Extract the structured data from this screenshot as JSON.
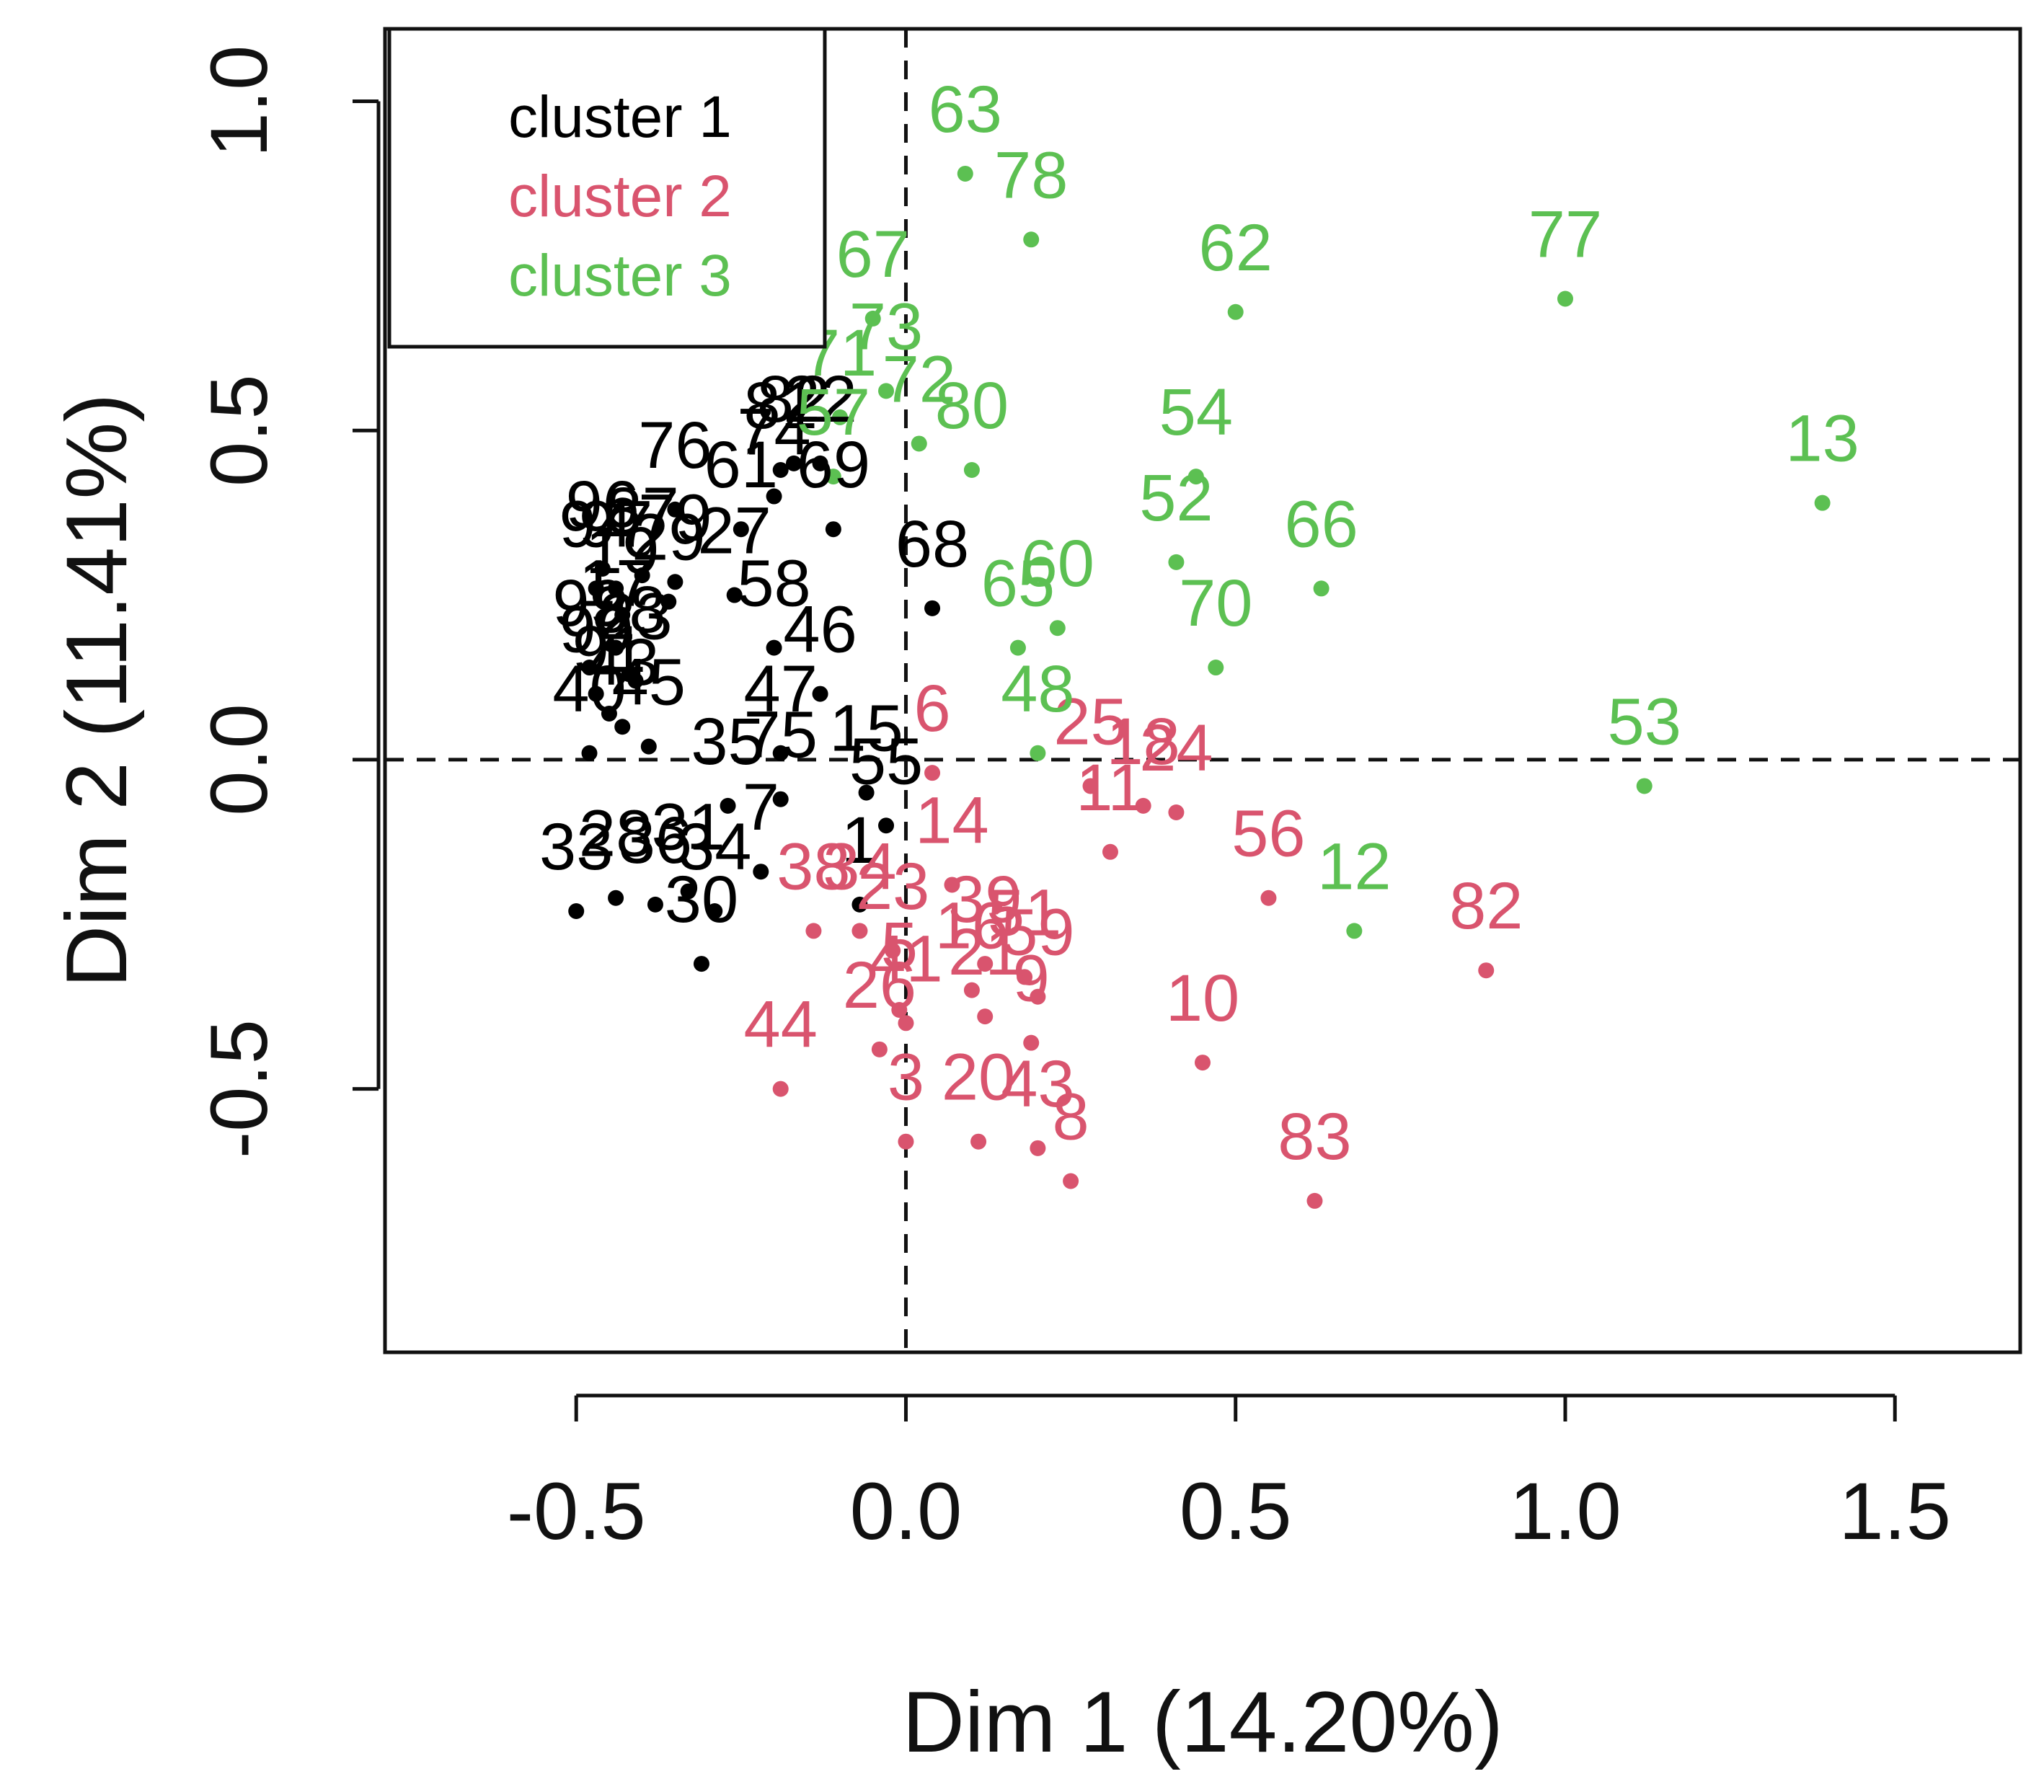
{
  "chart_data": {
    "type": "scatter",
    "title": "",
    "xlabel": "Dim 1 (14.20%)",
    "ylabel": "Dim 2 (11.41%)",
    "xlim": [
      -0.79,
      1.69
    ],
    "ylim": [
      -0.9,
      1.11
    ],
    "xticks": [
      -0.5,
      0.0,
      0.5,
      1.0,
      1.5
    ],
    "yticks": [
      -0.5,
      0.0,
      0.5,
      1.0
    ],
    "xtick_labels": [
      "-0.5",
      "0.0",
      "0.5",
      "1.0",
      "1.5"
    ],
    "ytick_labels": [
      "-0.5",
      "0.0",
      "0.5",
      "1.0"
    ],
    "reference_lines": {
      "x": 0.0,
      "y": 0.0,
      "style": "dashed"
    },
    "legend": {
      "placement": "top-left",
      "entries": [
        "cluster 1",
        "cluster 2",
        "cluster 3"
      ]
    },
    "colors": {
      "cluster 1": "#000000",
      "cluster 2": "#d9546e",
      "cluster 3": "#5cc052",
      "axis": "#111111"
    },
    "series": [
      {
        "name": "cluster 1",
        "points": [
          {
            "label": "68",
            "x": 0.04,
            "y": 0.23
          },
          {
            "label": "69",
            "x": -0.11,
            "y": 0.35
          },
          {
            "label": "22",
            "x": -0.13,
            "y": 0.45
          },
          {
            "label": "81",
            "x": -0.19,
            "y": 0.44
          },
          {
            "label": "82",
            "x": -0.17,
            "y": 0.45
          },
          {
            "label": "74",
            "x": -0.2,
            "y": 0.4
          },
          {
            "label": "76",
            "x": -0.35,
            "y": 0.38
          },
          {
            "label": "61",
            "x": -0.25,
            "y": 0.35
          },
          {
            "label": "27",
            "x": -0.26,
            "y": 0.25
          },
          {
            "label": "58",
            "x": -0.2,
            "y": 0.17
          },
          {
            "label": "46",
            "x": -0.13,
            "y": 0.1
          },
          {
            "label": "47",
            "x": -0.19,
            "y": 0.01
          },
          {
            "label": "15",
            "x": -0.06,
            "y": -0.05
          },
          {
            "label": "55",
            "x": -0.03,
            "y": -0.1
          },
          {
            "label": "75",
            "x": -0.19,
            "y": -0.06
          },
          {
            "label": "35",
            "x": -0.27,
            "y": -0.07
          },
          {
            "label": "1",
            "x": -0.07,
            "y": -0.22
          },
          {
            "label": "7",
            "x": -0.22,
            "y": -0.17
          },
          {
            "label": "34",
            "x": -0.29,
            "y": -0.23
          },
          {
            "label": "30",
            "x": -0.31,
            "y": -0.31
          },
          {
            "label": "31",
            "x": -0.33,
            "y": -0.2
          },
          {
            "label": "36",
            "x": -0.38,
            "y": -0.22
          },
          {
            "label": "28",
            "x": -0.44,
            "y": -0.21
          },
          {
            "label": "33",
            "x": -0.5,
            "y": -0.23
          },
          {
            "label": "40",
            "x": -0.48,
            "y": 0.01
          },
          {
            "label": "45",
            "x": -0.39,
            "y": 0.02
          },
          {
            "label": "43",
            "x": -0.43,
            "y": 0.05
          },
          {
            "label": "23",
            "x": -0.41,
            "y": 0.12
          },
          {
            "label": "99",
            "x": -0.48,
            "y": 0.14
          },
          {
            "label": "17",
            "x": -0.44,
            "y": 0.17
          },
          {
            "label": "19",
            "x": -0.43,
            "y": 0.22
          },
          {
            "label": "94",
            "x": -0.47,
            "y": 0.26
          },
          {
            "label": "96",
            "x": -0.46,
            "y": 0.29
          },
          {
            "label": "87",
            "x": -0.4,
            "y": 0.28
          },
          {
            "label": "79",
            "x": -0.35,
            "y": 0.27
          },
          {
            "label": "97",
            "x": -0.44,
            "y": 0.26
          },
          {
            "label": "29",
            "x": -0.36,
            "y": 0.24
          },
          {
            "label": "88",
            "x": -0.42,
            "y": 0.13
          },
          {
            "label": "90",
            "x": -0.47,
            "y": 0.1
          },
          {
            "label": "91",
            "x": -0.45,
            "y": 0.07
          }
        ]
      },
      {
        "name": "cluster 2",
        "points": [
          {
            "label": "6",
            "x": 0.04,
            "y": -0.02
          },
          {
            "label": "14",
            "x": 0.07,
            "y": -0.19
          },
          {
            "label": "34",
            "x": -0.07,
            "y": -0.26
          },
          {
            "label": "38",
            "x": -0.14,
            "y": -0.26
          },
          {
            "label": "23",
            "x": -0.02,
            "y": -0.29
          },
          {
            "label": "5",
            "x": -0.01,
            "y": -0.38
          },
          {
            "label": "41",
            "x": 0.0,
            "y": -0.4
          },
          {
            "label": "16",
            "x": 0.1,
            "y": -0.35
          },
          {
            "label": "39",
            "x": 0.12,
            "y": -0.31
          },
          {
            "label": "51",
            "x": 0.18,
            "y": -0.33
          },
          {
            "label": "59",
            "x": 0.2,
            "y": -0.36
          },
          {
            "label": "21",
            "x": 0.12,
            "y": -0.39
          },
          {
            "label": "9",
            "x": 0.19,
            "y": -0.43
          },
          {
            "label": "26",
            "x": -0.04,
            "y": -0.44
          },
          {
            "label": "20",
            "x": 0.11,
            "y": -0.58
          },
          {
            "label": "43",
            "x": 0.2,
            "y": -0.59
          },
          {
            "label": "8",
            "x": 0.25,
            "y": -0.64
          },
          {
            "label": "3",
            "x": 0.0,
            "y": -0.58
          },
          {
            "label": "44",
            "x": -0.19,
            "y": -0.5
          },
          {
            "label": "11",
            "x": 0.31,
            "y": -0.14
          },
          {
            "label": "25",
            "x": 0.28,
            "y": -0.04
          },
          {
            "label": "18",
            "x": 0.36,
            "y": -0.07
          },
          {
            "label": "24",
            "x": 0.41,
            "y": -0.08
          },
          {
            "label": "56",
            "x": 0.55,
            "y": -0.21
          },
          {
            "label": "10",
            "x": 0.45,
            "y": -0.46
          },
          {
            "label": "82",
            "x": 0.88,
            "y": -0.32
          },
          {
            "label": "83",
            "x": 0.62,
            "y": -0.67
          }
        ]
      },
      {
        "name": "cluster 3",
        "points": [
          {
            "label": "63",
            "x": 0.09,
            "y": 0.89
          },
          {
            "label": "78",
            "x": 0.19,
            "y": 0.79
          },
          {
            "label": "67",
            "x": -0.05,
            "y": 0.67
          },
          {
            "label": "73",
            "x": -0.03,
            "y": 0.56
          },
          {
            "label": "71",
            "x": -0.1,
            "y": 0.52
          },
          {
            "label": "57",
            "x": -0.11,
            "y": 0.43
          },
          {
            "label": "72",
            "x": 0.02,
            "y": 0.48
          },
          {
            "label": "80",
            "x": 0.1,
            "y": 0.44
          },
          {
            "label": "62",
            "x": 0.5,
            "y": 0.68
          },
          {
            "label": "77",
            "x": 1.0,
            "y": 0.7
          },
          {
            "label": "13",
            "x": 1.39,
            "y": 0.39
          },
          {
            "label": "54",
            "x": 0.44,
            "y": 0.43
          },
          {
            "label": "52",
            "x": 0.41,
            "y": 0.3
          },
          {
            "label": "66",
            "x": 0.63,
            "y": 0.26
          },
          {
            "label": "70",
            "x": 0.47,
            "y": 0.14
          },
          {
            "label": "60",
            "x": 0.23,
            "y": 0.2
          },
          {
            "label": "65",
            "x": 0.17,
            "y": 0.17
          },
          {
            "label": "48",
            "x": 0.2,
            "y": 0.01
          },
          {
            "label": "53",
            "x": 1.12,
            "y": -0.04
          },
          {
            "label": "12",
            "x": 0.68,
            "y": -0.26
          }
        ]
      }
    ]
  }
}
